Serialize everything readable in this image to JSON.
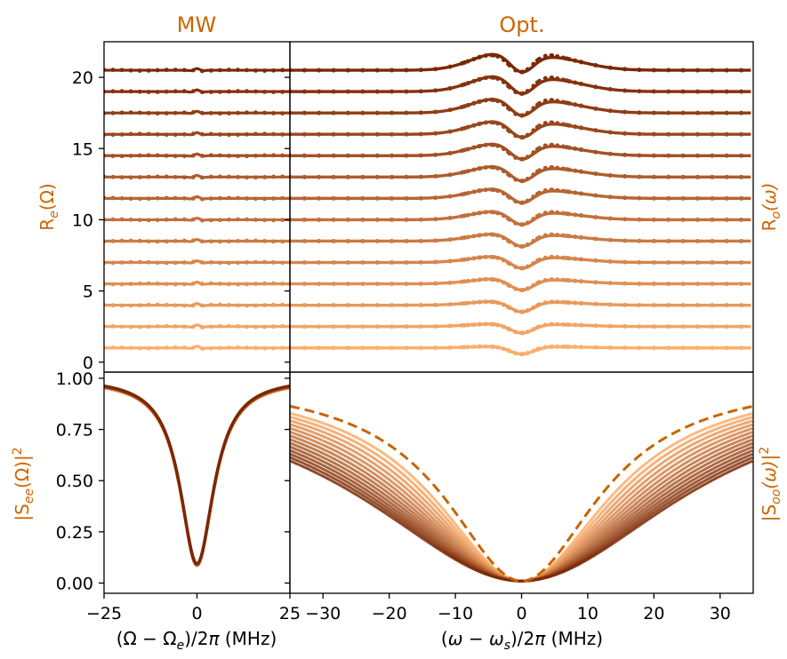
{
  "colors": {
    "accent": "#cc6600",
    "dark": "#7a2805",
    "light": "#fdae6b",
    "dash": "#c86400"
  },
  "titles": {
    "left": "MW",
    "right": "Opt."
  },
  "labels": {
    "re": "R_e(Ω)",
    "ro": "R_o(ω)",
    "see": "|S_ee(Ω)|²",
    "soo": "|S_oo(ω)|²",
    "xl": "(Ω − Ω_e)/2π (MHz)",
    "xr": "(ω − ω_s)/2π (MHz)"
  },
  "chart_data": [
    {
      "type": "line",
      "panel": "MW top",
      "xlim": [
        -25,
        25
      ],
      "ylim": [
        -0.7,
        22.5
      ],
      "yticks": [
        "0",
        "5",
        "10",
        "15",
        "20"
      ],
      "series_offsets": [
        1.0,
        2.5,
        4.0,
        5.5,
        7.0,
        8.5,
        10.0,
        11.5,
        13.0,
        14.5,
        16.0,
        17.5,
        19.0,
        20.5
      ],
      "markers": "points + fit line, nearly flat with small wiggle at 0"
    },
    {
      "type": "line",
      "panel": "Opt. top",
      "xlim": [
        -35,
        35
      ],
      "ylim": [
        -0.7,
        22.5
      ],
      "series_offsets": [
        1.0,
        2.5,
        4.0,
        5.5,
        7.0,
        8.5,
        10.0,
        11.5,
        13.0,
        14.5,
        16.0,
        17.5,
        19.0,
        20.5
      ],
      "dip_depth": [
        0.55,
        0.65,
        0.75,
        0.8,
        0.85,
        0.9,
        0.95,
        1.0,
        1.05,
        1.1,
        1.15,
        1.2,
        1.25,
        1.3
      ],
      "bump_height": [
        0.1,
        0.17,
        0.24,
        0.31,
        0.38,
        0.45,
        0.52,
        0.59,
        0.66,
        0.73,
        0.8,
        0.87,
        0.94,
        1.0
      ]
    },
    {
      "type": "line",
      "panel": "MW bottom",
      "xlim": [
        -25,
        25
      ],
      "ylim": [
        -0.05,
        1.03
      ],
      "xticks": [
        "−25",
        "0",
        "25"
      ],
      "yticks": [
        "0.00",
        "0.25",
        "0.50",
        "0.75",
        "1.00"
      ],
      "min_value": 0.09,
      "linewidth_mhz": 5.5
    },
    {
      "type": "line",
      "panel": "Opt. bottom",
      "xlim": [
        -35,
        35
      ],
      "ylim": [
        -0.05,
        1.03
      ],
      "xticks": [
        "−30",
        "−20",
        "−10",
        "0",
        "10",
        "20",
        "30"
      ],
      "min_value": 0.01,
      "series_halfwidths": [
        16,
        17,
        18,
        19,
        20,
        21,
        22,
        23,
        24,
        25,
        26,
        27,
        28,
        29
      ],
      "dashed_halfwidth": 14
    }
  ]
}
